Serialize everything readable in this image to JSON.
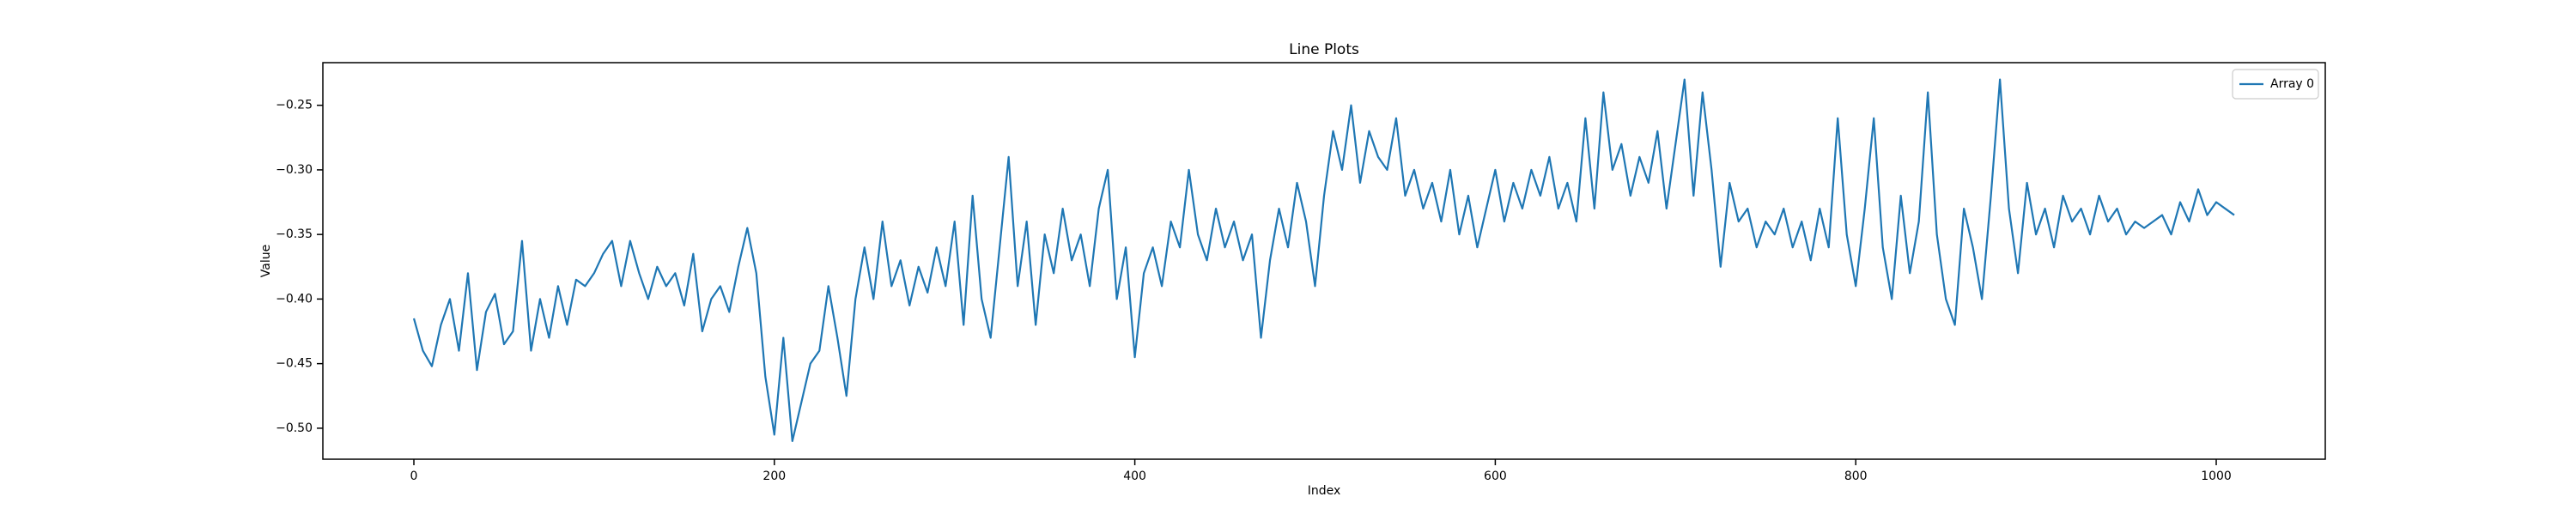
{
  "chart_data": {
    "type": "line",
    "title": "Line Plots",
    "x_label": "Index",
    "y_label": "Value",
    "x": [
      0,
      5,
      10,
      15,
      20,
      25,
      30,
      35,
      40,
      45,
      50,
      55,
      60,
      65,
      70,
      75,
      80,
      85,
      90,
      95,
      100,
      105,
      110,
      115,
      120,
      125,
      130,
      135,
      140,
      145,
      150,
      155,
      160,
      165,
      170,
      175,
      180,
      185,
      190,
      195,
      200,
      205,
      210,
      215,
      220,
      225,
      230,
      235,
      240,
      245,
      250,
      255,
      260,
      265,
      270,
      275,
      280,
      285,
      290,
      295,
      300,
      305,
      310,
      315,
      320,
      325,
      330,
      335,
      340,
      345,
      350,
      355,
      360,
      365,
      370,
      375,
      380,
      385,
      390,
      395,
      400,
      405,
      410,
      415,
      420,
      425,
      430,
      435,
      440,
      445,
      450,
      455,
      460,
      465,
      470,
      475,
      480,
      485,
      490,
      495,
      500,
      505,
      510,
      515,
      520,
      525,
      530,
      535,
      540,
      545,
      550,
      555,
      560,
      565,
      570,
      575,
      580,
      585,
      590,
      595,
      600,
      605,
      610,
      615,
      620,
      625,
      630,
      635,
      640,
      645,
      650,
      655,
      660,
      665,
      670,
      675,
      680,
      685,
      690,
      695,
      700,
      705,
      710,
      715,
      720,
      725,
      730,
      735,
      740,
      745,
      750,
      755,
      760,
      765,
      770,
      775,
      780,
      785,
      790,
      795,
      800,
      805,
      810,
      815,
      820,
      825,
      830,
      835,
      840,
      845,
      850,
      855,
      860,
      865,
      870,
      875,
      880,
      885,
      890,
      895,
      900,
      905,
      910,
      915,
      920,
      925,
      930,
      935,
      940,
      945,
      950,
      955,
      960,
      965,
      970,
      975,
      980,
      985,
      990,
      995,
      1000,
      1005,
      1010
    ],
    "series": [
      {
        "name": "Array 0",
        "color": "#1f77b4",
        "values": [
          -0.415,
          -0.44,
          -0.452,
          -0.42,
          -0.4,
          -0.44,
          -0.38,
          -0.455,
          -0.41,
          -0.396,
          -0.435,
          -0.425,
          -0.355,
          -0.44,
          -0.4,
          -0.43,
          -0.39,
          -0.42,
          -0.385,
          -0.39,
          -0.38,
          -0.365,
          -0.355,
          -0.39,
          -0.355,
          -0.38,
          -0.4,
          -0.375,
          -0.39,
          -0.38,
          -0.405,
          -0.365,
          -0.425,
          -0.4,
          -0.39,
          -0.41,
          -0.375,
          -0.345,
          -0.38,
          -0.46,
          -0.505,
          -0.43,
          -0.51,
          -0.48,
          -0.45,
          -0.44,
          -0.39,
          -0.43,
          -0.475,
          -0.4,
          -0.36,
          -0.4,
          -0.34,
          -0.39,
          -0.37,
          -0.405,
          -0.375,
          -0.395,
          -0.36,
          -0.39,
          -0.34,
          -0.42,
          -0.32,
          -0.4,
          -0.43,
          -0.36,
          -0.29,
          -0.39,
          -0.34,
          -0.42,
          -0.35,
          -0.38,
          -0.33,
          -0.37,
          -0.35,
          -0.39,
          -0.33,
          -0.3,
          -0.4,
          -0.36,
          -0.445,
          -0.38,
          -0.36,
          -0.39,
          -0.34,
          -0.36,
          -0.3,
          -0.35,
          -0.37,
          -0.33,
          -0.36,
          -0.34,
          -0.37,
          -0.35,
          -0.43,
          -0.37,
          -0.33,
          -0.36,
          -0.31,
          -0.34,
          -0.39,
          -0.32,
          -0.27,
          -0.3,
          -0.25,
          -0.31,
          -0.27,
          -0.29,
          -0.3,
          -0.26,
          -0.32,
          -0.3,
          -0.33,
          -0.31,
          -0.34,
          -0.3,
          -0.35,
          -0.32,
          -0.36,
          -0.33,
          -0.3,
          -0.34,
          -0.31,
          -0.33,
          -0.3,
          -0.32,
          -0.29,
          -0.33,
          -0.31,
          -0.34,
          -0.26,
          -0.33,
          -0.24,
          -0.3,
          -0.28,
          -0.32,
          -0.29,
          -0.31,
          -0.27,
          -0.33,
          -0.28,
          -0.23,
          -0.32,
          -0.24,
          -0.3,
          -0.375,
          -0.31,
          -0.34,
          -0.33,
          -0.36,
          -0.34,
          -0.35,
          -0.33,
          -0.36,
          -0.34,
          -0.37,
          -0.33,
          -0.36,
          -0.26,
          -0.35,
          -0.39,
          -0.33,
          -0.26,
          -0.36,
          -0.4,
          -0.32,
          -0.38,
          -0.34,
          -0.24,
          -0.35,
          -0.4,
          -0.42,
          -0.33,
          -0.36,
          -0.4,
          -0.32,
          -0.23,
          -0.33,
          -0.38,
          -0.31,
          -0.35,
          -0.33,
          -0.36,
          -0.32,
          -0.34,
          -0.33,
          -0.35,
          -0.32,
          -0.34,
          -0.33,
          -0.35,
          -0.34,
          -0.345,
          -0.34,
          -0.335,
          -0.35,
          -0.325,
          -0.34,
          -0.315,
          -0.335,
          -0.325,
          -0.33,
          -0.335
        ]
      }
    ],
    "xlim": [
      -50.5,
      1060.5
    ],
    "xticks": [
      0,
      200,
      400,
      600,
      800,
      1000
    ],
    "ylim": [
      -0.524,
      -0.217
    ],
    "yticks": [
      {
        "value": -0.5,
        "label": "−0.50"
      },
      {
        "value": -0.45,
        "label": "−0.45"
      },
      {
        "value": -0.4,
        "label": "−0.40"
      },
      {
        "value": -0.35,
        "label": "−0.35"
      },
      {
        "value": -0.3,
        "label": "−0.30"
      },
      {
        "value": -0.25,
        "label": "−0.25"
      }
    ],
    "grid": false,
    "legend": "upper right"
  }
}
